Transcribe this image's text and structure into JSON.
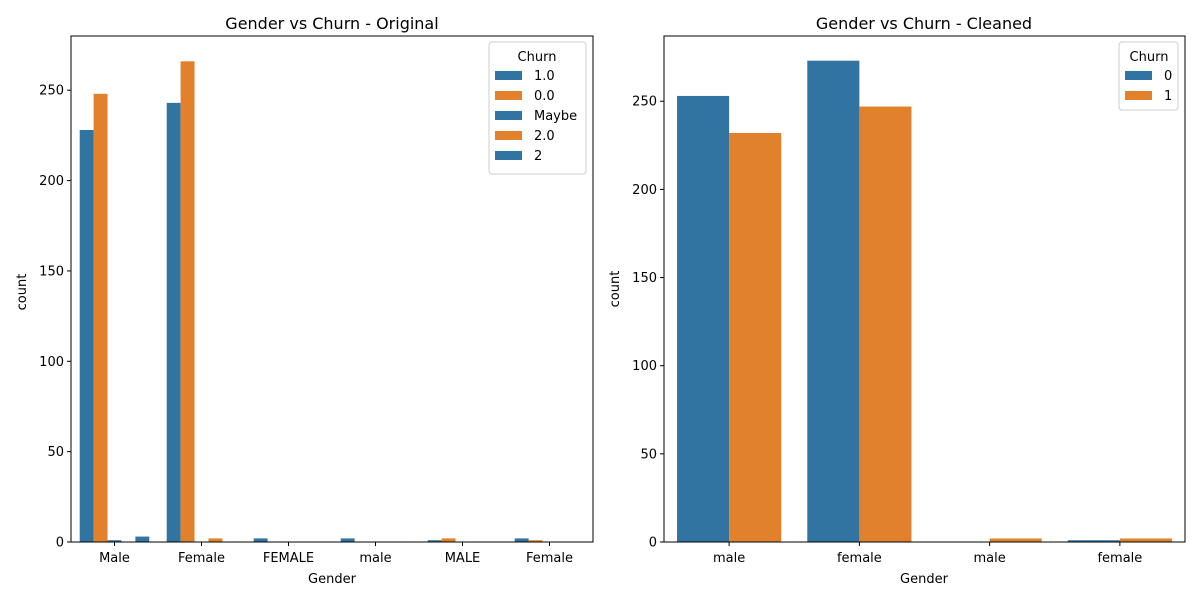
{
  "chart_data": [
    {
      "type": "bar",
      "title": "Gender vs Churn - Original",
      "xlabel": "Gender",
      "ylabel": "count",
      "categories": [
        "Male",
        "Female",
        "FEMALE",
        " male",
        "MALE",
        " Female"
      ],
      "ylim": [
        0,
        280
      ],
      "yticks": [
        0,
        50,
        100,
        150,
        200,
        250
      ],
      "grid": false,
      "legend": {
        "title": "Churn",
        "placement": "top-right"
      },
      "series": [
        {
          "name": "1.0",
          "color": "#3274a1",
          "values": [
            228,
            243,
            2,
            2,
            1,
            2
          ]
        },
        {
          "name": "0.0",
          "color": "#e1812c",
          "values": [
            248,
            266,
            0,
            0,
            2,
            1
          ]
        },
        {
          "name": "Maybe",
          "color": "#3274a1",
          "values": [
            1,
            0,
            0,
            0,
            0,
            0
          ]
        },
        {
          "name": "2.0",
          "color": "#e1812c",
          "values": [
            0,
            2,
            0,
            0,
            0,
            0
          ]
        },
        {
          "name": "2",
          "color": "#3274a1",
          "values": [
            3,
            0,
            0,
            0,
            0,
            0
          ]
        }
      ]
    },
    {
      "type": "bar",
      "title": "Gender vs Churn - Cleaned",
      "xlabel": "Gender",
      "ylabel": "count",
      "categories": [
        "male",
        "female",
        " male",
        " female"
      ],
      "ylim": [
        0,
        287
      ],
      "yticks": [
        0,
        50,
        100,
        150,
        200,
        250
      ],
      "grid": false,
      "legend": {
        "title": "Churn",
        "placement": "top-right"
      },
      "series": [
        {
          "name": "0",
          "color": "#3274a1",
          "values": [
            253,
            273,
            0,
            1
          ]
        },
        {
          "name": "1",
          "color": "#e1812c",
          "values": [
            232,
            247,
            2,
            2
          ]
        }
      ]
    }
  ]
}
